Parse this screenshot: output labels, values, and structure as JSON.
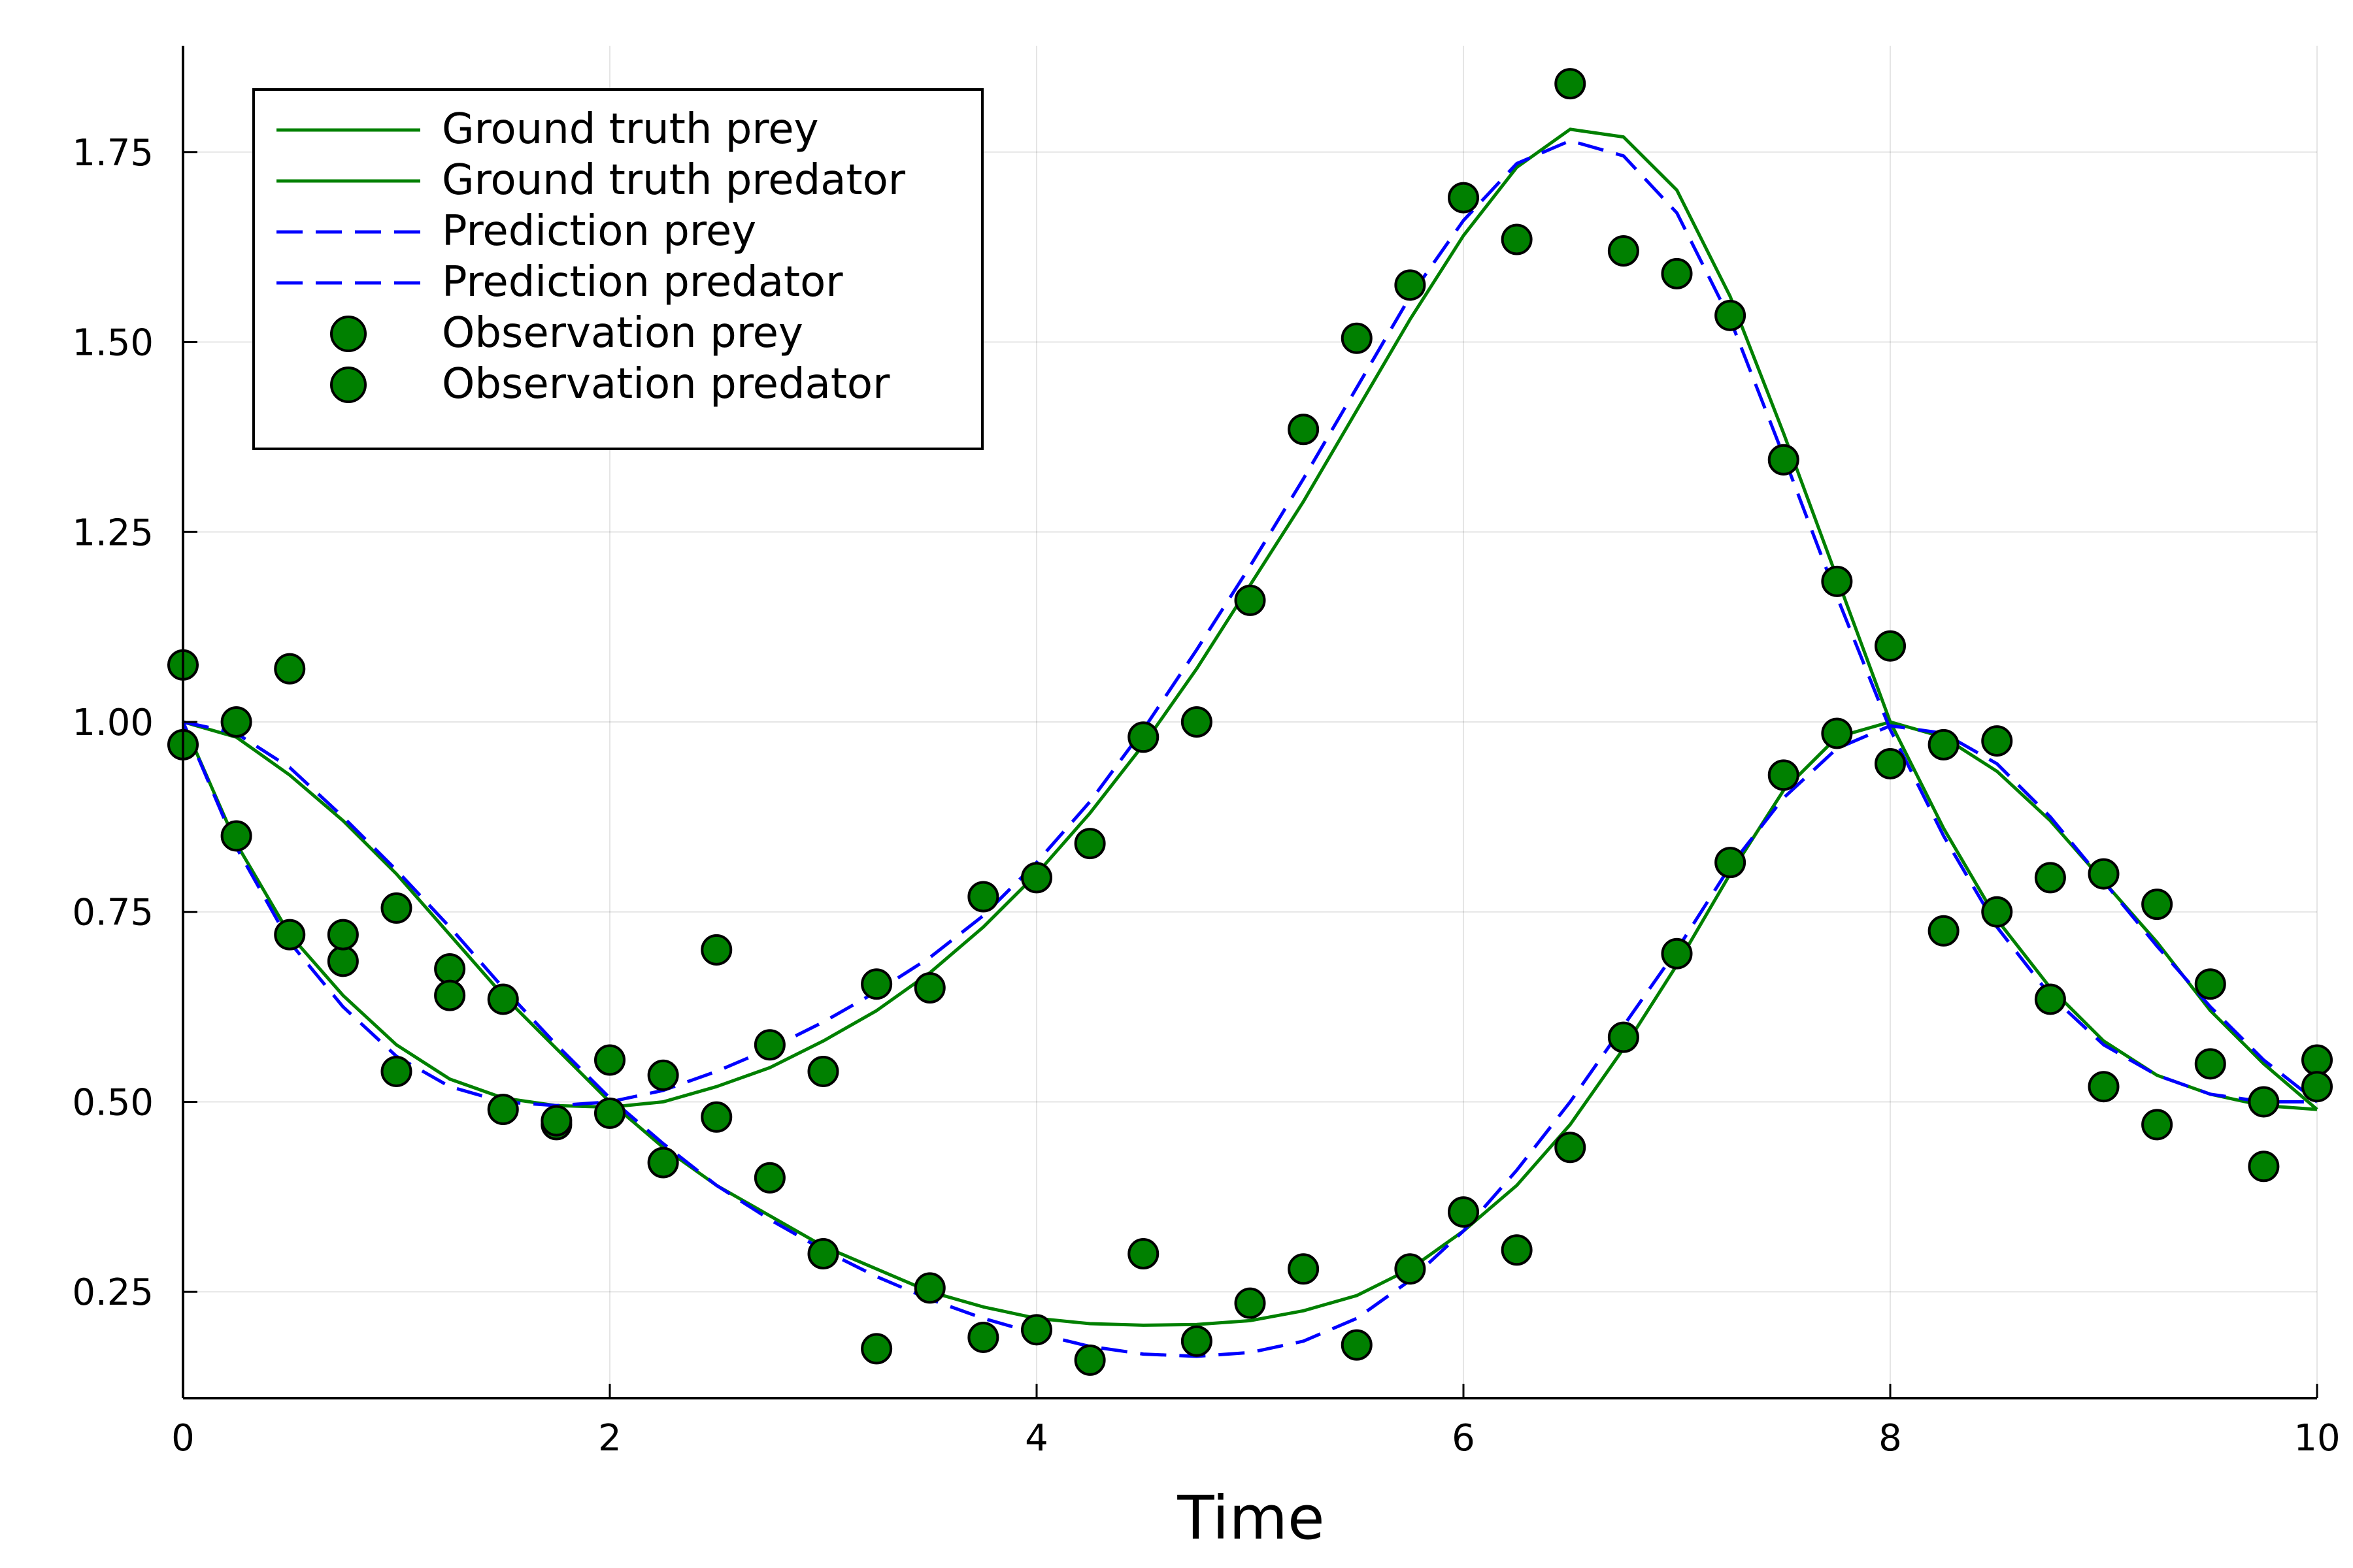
{
  "chart_data": {
    "type": "line",
    "title": "",
    "xlabel": "Time",
    "ylabel": "",
    "xlim": [
      0,
      10
    ],
    "ylim": [
      0.11,
      1.89
    ],
    "xticks": [
      0,
      2,
      4,
      6,
      8,
      10
    ],
    "xtick_labels": [
      "0",
      "2",
      "4",
      "6",
      "8",
      "10"
    ],
    "yticks": [
      0.25,
      0.5,
      0.75,
      1.0,
      1.25,
      1.5,
      1.75
    ],
    "ytick_labels": [
      "0.25",
      "0.50",
      "0.75",
      "1.00",
      "1.25",
      "1.50",
      "1.75"
    ],
    "grid": true,
    "legend_position": "top-left",
    "colors": {
      "ground_truth": "#008000",
      "prediction": "#0000ff",
      "observation_fill": "#008000",
      "observation_edge": "#000000"
    },
    "x": [
      0,
      0.25,
      0.5,
      0.75,
      1.0,
      1.25,
      1.5,
      1.75,
      2.0,
      2.25,
      2.5,
      2.75,
      3.0,
      3.25,
      3.5,
      3.75,
      4.0,
      4.25,
      4.5,
      4.75,
      5.0,
      5.25,
      5.5,
      5.75,
      6.0,
      6.25,
      6.5,
      6.75,
      7.0,
      7.25,
      7.5,
      7.75,
      8.0,
      8.25,
      8.5,
      8.75,
      9.0,
      9.25,
      9.5,
      9.75,
      10.0
    ],
    "series": [
      {
        "name": "Ground truth prey",
        "style": "solid",
        "color": "#008000",
        "values": [
          1.0,
          0.98,
          0.93,
          0.87,
          0.8,
          0.72,
          0.64,
          0.57,
          0.5,
          0.44,
          0.39,
          0.35,
          0.31,
          0.28,
          0.25,
          0.23,
          0.215,
          0.208,
          0.206,
          0.207,
          0.212,
          0.225,
          0.245,
          0.28,
          0.33,
          0.39,
          0.47,
          0.57,
          0.68,
          0.8,
          0.91,
          0.98,
          1.0,
          0.98,
          0.935,
          0.87,
          0.79,
          0.71,
          0.62,
          0.55,
          0.49
        ]
      },
      {
        "name": "Ground truth predator",
        "style": "solid",
        "color": "#008000",
        "values": [
          1.0,
          0.84,
          0.72,
          0.64,
          0.575,
          0.53,
          0.505,
          0.495,
          0.493,
          0.5,
          0.52,
          0.545,
          0.58,
          0.62,
          0.67,
          0.73,
          0.8,
          0.88,
          0.97,
          1.07,
          1.18,
          1.29,
          1.41,
          1.53,
          1.64,
          1.73,
          1.78,
          1.77,
          1.7,
          1.56,
          1.38,
          1.19,
          1.0,
          0.86,
          0.74,
          0.65,
          0.58,
          0.535,
          0.51,
          0.495,
          0.49
        ]
      },
      {
        "name": "Prediction prey",
        "style": "dashed",
        "color": "#0000ff",
        "values": [
          1.0,
          0.985,
          0.94,
          0.875,
          0.805,
          0.73,
          0.65,
          0.575,
          0.505,
          0.445,
          0.39,
          0.345,
          0.305,
          0.27,
          0.24,
          0.215,
          0.195,
          0.178,
          0.168,
          0.165,
          0.17,
          0.185,
          0.215,
          0.265,
          0.33,
          0.41,
          0.5,
          0.6,
          0.7,
          0.81,
          0.9,
          0.965,
          0.995,
          0.985,
          0.945,
          0.875,
          0.79,
          0.705,
          0.625,
          0.555,
          0.5
        ]
      },
      {
        "name": "Prediction predator",
        "style": "dashed",
        "color": "#0000ff",
        "values": [
          1.0,
          0.835,
          0.71,
          0.625,
          0.56,
          0.52,
          0.5,
          0.495,
          0.5,
          0.515,
          0.54,
          0.57,
          0.605,
          0.645,
          0.69,
          0.745,
          0.815,
          0.895,
          0.99,
          1.095,
          1.205,
          1.32,
          1.44,
          1.56,
          1.66,
          1.735,
          1.765,
          1.745,
          1.67,
          1.53,
          1.35,
          1.165,
          0.99,
          0.85,
          0.73,
          0.64,
          0.575,
          0.535,
          0.51,
          0.5,
          0.5
        ]
      },
      {
        "name": "Observation prey",
        "style": "markers",
        "color": "#008000",
        "values": [
          0.97,
          0.85,
          0.72,
          0.685,
          0.54,
          0.675,
          0.49,
          0.47,
          0.485,
          0.42,
          0.7,
          0.4,
          0.3,
          0.175,
          0.255,
          0.19,
          0.2,
          0.16,
          0.3,
          0.185,
          0.235,
          0.28,
          0.18,
          0.28,
          0.355,
          0.305,
          0.44,
          0.585,
          0.695,
          0.815,
          0.93,
          0.985,
          0.945,
          0.97,
          0.975,
          0.795,
          0.8,
          0.76,
          0.655,
          0.5,
          0.555
        ]
      },
      {
        "name": "Observation predator",
        "style": "markers",
        "color": "#008000",
        "values": [
          1.075,
          1.0,
          1.07,
          0.72,
          0.755,
          0.64,
          0.635,
          0.475,
          0.555,
          0.535,
          0.48,
          0.575,
          0.54,
          0.655,
          0.65,
          0.77,
          0.795,
          0.84,
          0.98,
          1.0,
          1.16,
          1.385,
          1.505,
          1.575,
          1.69,
          1.635,
          1.84,
          1.62,
          1.59,
          1.535,
          1.345,
          1.185,
          1.1,
          0.725,
          0.75,
          0.635,
          0.52,
          0.47,
          0.55,
          0.415,
          0.52
        ]
      }
    ]
  }
}
